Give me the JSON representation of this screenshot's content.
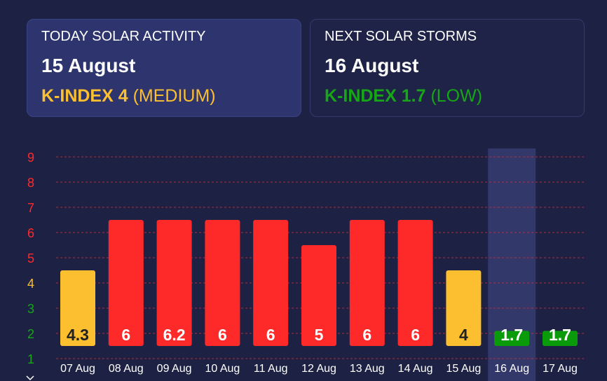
{
  "today": {
    "heading": "TODAY SOLAR ACTIVITY",
    "date": "15 August",
    "kindex_text": "K-INDEX 4",
    "level_text": "(MEDIUM)",
    "color": "#fbbf2f"
  },
  "next": {
    "heading": "NEXT SOLAR STORMS",
    "date": "16 August",
    "kindex_text": "K-INDEX 1.7",
    "level_text": "(LOW)",
    "color": "#17a617"
  },
  "colors": {
    "high": "#fe2a2a",
    "medium": "#fbbf2f",
    "low": "#0a9b0a",
    "bar_text_light": "#ffffff",
    "bar_text_dark": "#222222",
    "grid_line": "#c83a4a",
    "highlight_column": "#33386a",
    "axis_label": "#ffffff"
  },
  "chart_data": {
    "type": "bar",
    "categories": [
      "07 Aug",
      "08 Aug",
      "09 Aug",
      "10 Aug",
      "11 Aug",
      "12 Aug",
      "13 Aug",
      "14 Aug",
      "15 Aug",
      "16 Aug",
      "17 Aug"
    ],
    "values": [
      4.3,
      6,
      6.2,
      6,
      6,
      5,
      6,
      6,
      4,
      1.7,
      1.7
    ],
    "bar_heights": [
      4.5,
      6.5,
      6.5,
      6.5,
      6.5,
      5.5,
      6.5,
      6.5,
      4.5,
      2.1,
      2.1
    ],
    "bar_levels": [
      "medium",
      "high",
      "high",
      "high",
      "high",
      "high",
      "high",
      "high",
      "medium",
      "low",
      "low"
    ],
    "y_ticks": [
      1,
      2,
      3,
      4,
      5,
      6,
      7,
      8,
      9
    ],
    "y_tick_colors": [
      "#17a617",
      "#17a617",
      "#17a617",
      "#fbbf2f",
      "#fe2a2a",
      "#fe2a2a",
      "#fe2a2a",
      "#fe2a2a",
      "#fe2a2a"
    ],
    "ylim": [
      0.5,
      9.5
    ],
    "highlighted_category": "16 Aug",
    "grid": true,
    "title": "",
    "xlabel": "",
    "ylabel": ""
  }
}
